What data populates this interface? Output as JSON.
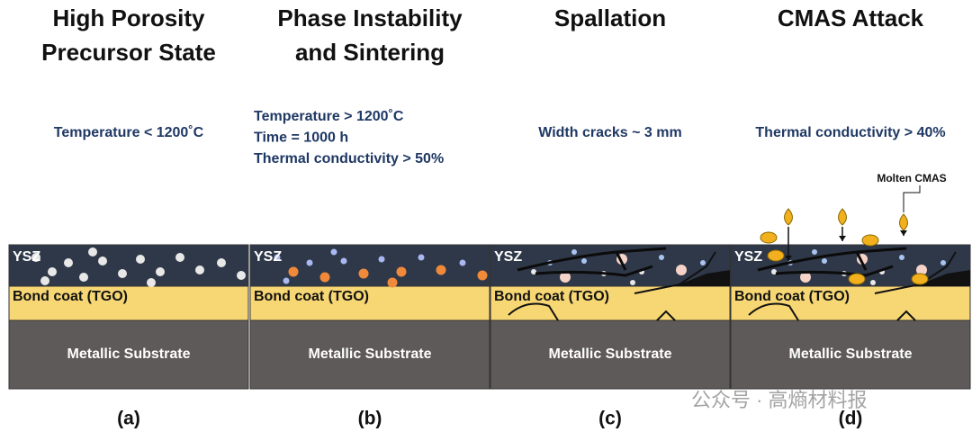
{
  "panels": [
    {
      "title": [
        "High Porosity",
        "Precursor State"
      ],
      "conditions": [
        "Temperature < 1200˚C"
      ],
      "layers": {
        "top": "YSZ",
        "middle": "Bond coat (TGO)",
        "bottom": "Metallic Substrate"
      },
      "caption": "(a)"
    },
    {
      "title": [
        "Phase Instability",
        "and Sintering"
      ],
      "conditions": [
        "Temperature > 1200˚C",
        "Time = 1000 h",
        "Thermal conductivity > 50%"
      ],
      "layers": {
        "top": "YSZ",
        "middle": "Bond coat (TGO)",
        "bottom": "Metallic Substrate"
      },
      "caption": "(b)"
    },
    {
      "title": [
        "Spallation"
      ],
      "conditions": [
        "Width cracks ~ 3 mm"
      ],
      "layers": {
        "top": "YSZ",
        "middle": "Bond coat (TGO)",
        "bottom": "Metallic Substrate"
      },
      "caption": "(c)"
    },
    {
      "title": [
        "CMAS Attack"
      ],
      "conditions": [
        "Thermal conductivity > 40%"
      ],
      "layers": {
        "top": "YSZ",
        "middle": "Bond coat (TGO)",
        "bottom": "Metallic Substrate"
      },
      "caption": "(d)"
    }
  ],
  "annotation": "Molten CMAS",
  "watermark": "公众号 · 高熵材料报"
}
